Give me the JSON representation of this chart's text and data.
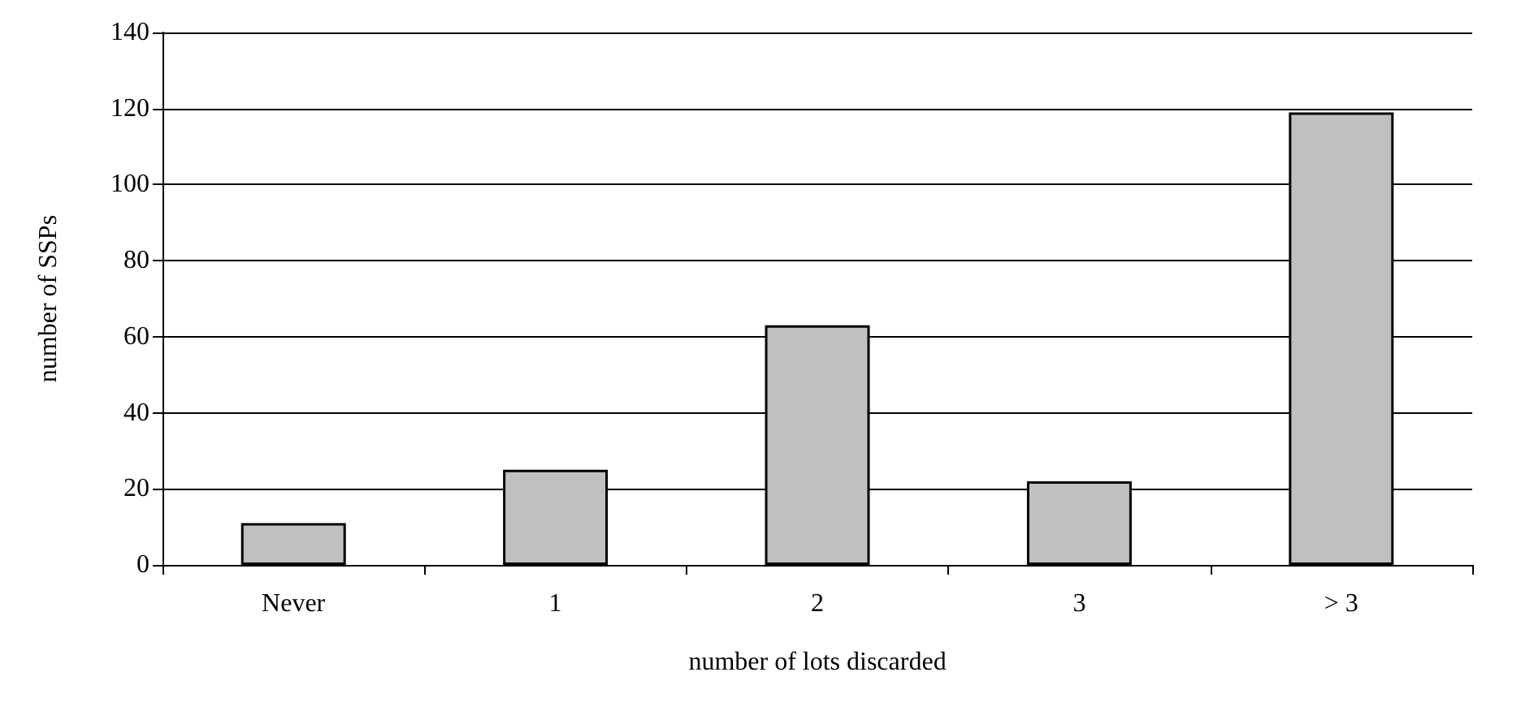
{
  "chart_data": {
    "type": "bar",
    "xlabel": "number of lots discarded",
    "ylabel": "number of SSPs",
    "categories": [
      "Never",
      "1",
      "2",
      "3",
      "> 3"
    ],
    "values": [
      11,
      25,
      63,
      22,
      119
    ],
    "color": "#c0c0c0",
    "ylim": [
      0,
      140
    ],
    "yticks": [
      0,
      20,
      40,
      60,
      80,
      100,
      120,
      140
    ],
    "grid": "y"
  }
}
